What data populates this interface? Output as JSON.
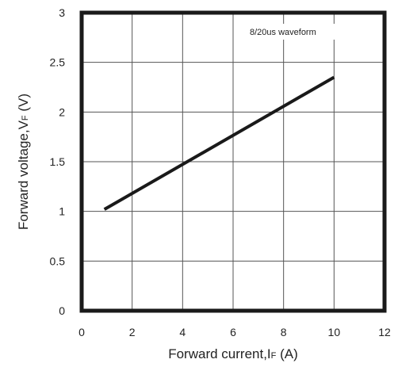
{
  "chart_data": {
    "type": "line",
    "title": "",
    "annotation": "8/20us waveform",
    "xlabel": {
      "main": "Forward current,I",
      "sub": "F",
      "unit": " (A)"
    },
    "ylabel": {
      "main": "Forward voltage,V",
      "sub": "F",
      "unit": " (V)"
    },
    "xlim": [
      0,
      12
    ],
    "ylim": [
      0,
      3
    ],
    "xticks": [
      "0",
      "2",
      "4",
      "6",
      "8",
      "10",
      "12"
    ],
    "yticks": [
      "0",
      "0.5",
      "1",
      "1.5",
      "2",
      "2.5",
      "3"
    ],
    "grid": true,
    "series": [
      {
        "x": [
          0.9,
          10.0
        ],
        "y": [
          1.02,
          2.35
        ],
        "color": "#1a1a1a"
      }
    ]
  }
}
